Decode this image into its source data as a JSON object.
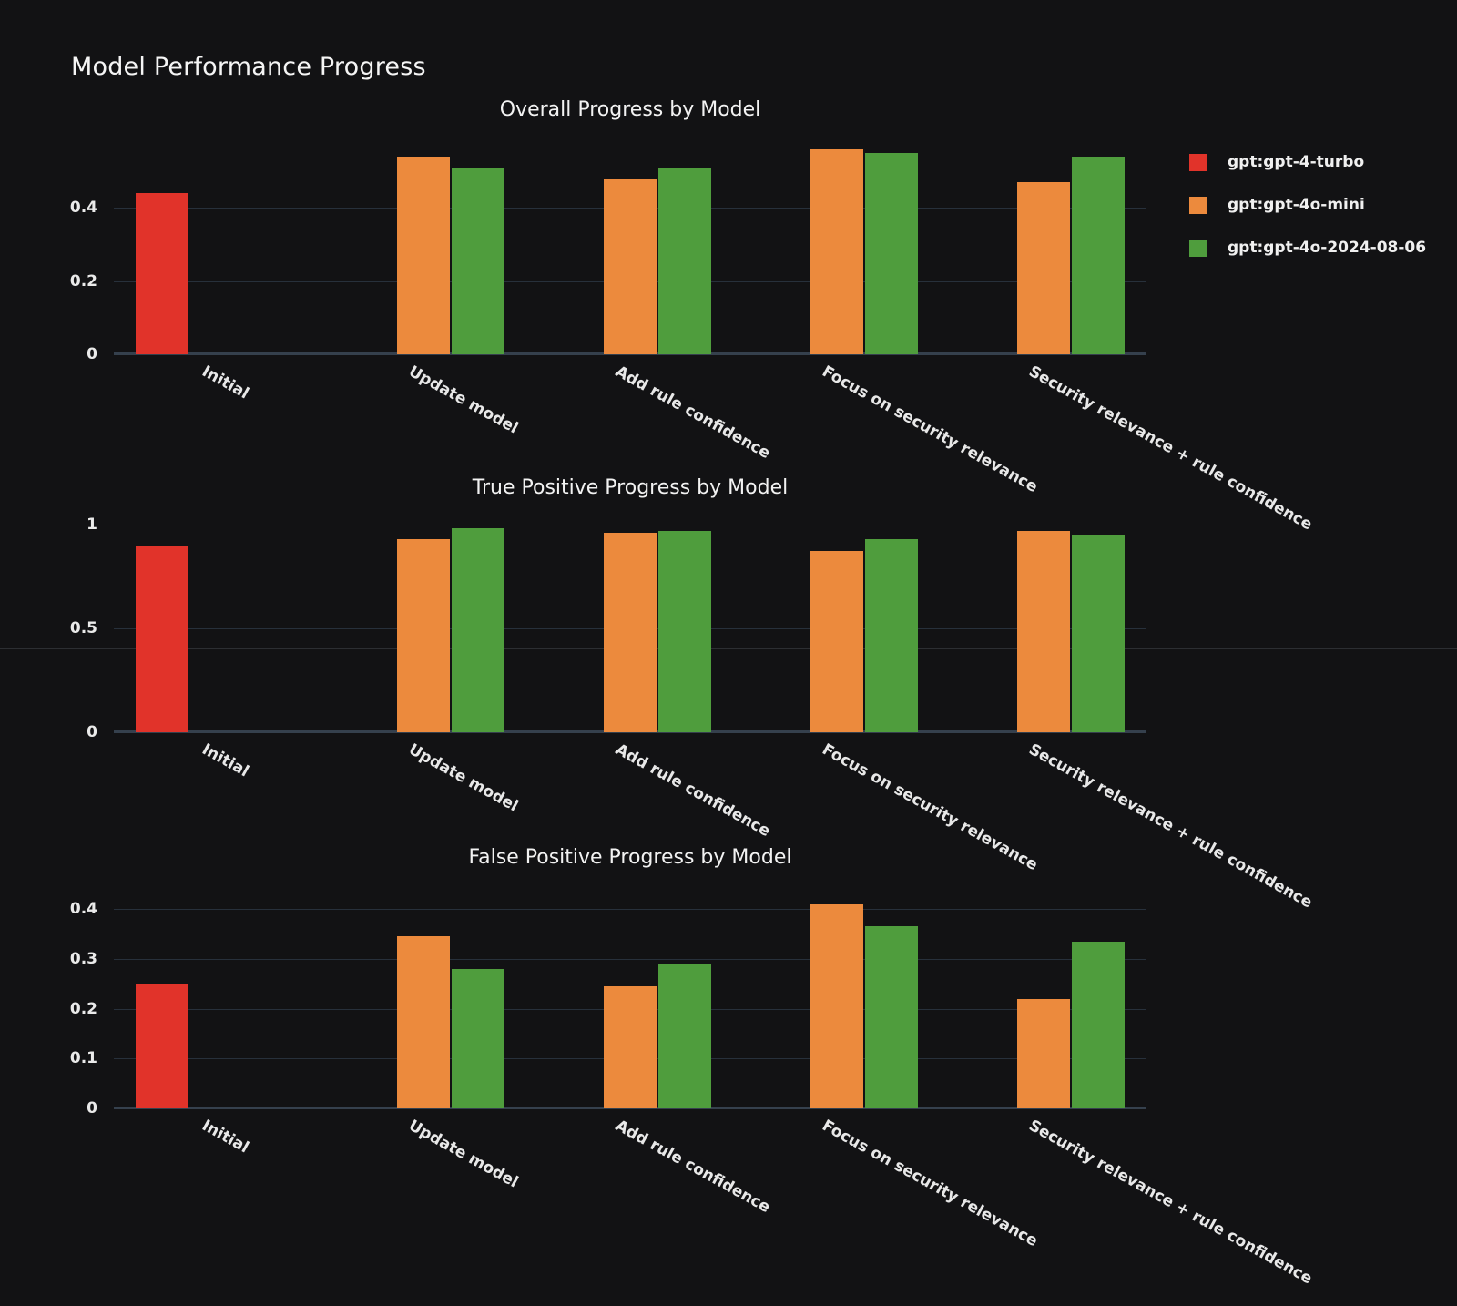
{
  "page": {
    "title": "Model Performance Progress"
  },
  "legend": {
    "items": [
      {
        "label": "gpt:gpt-4-turbo",
        "color": "#e1332a"
      },
      {
        "label": "gpt:gpt-4o-mini",
        "color": "#ec8a3d"
      },
      {
        "label": "gpt:gpt-4o-2024-08-06",
        "color": "#4f9d3d"
      }
    ],
    "position": "top-right outside plot"
  },
  "colors": {
    "background": "#121214",
    "gridline": "#27303b",
    "axis_line": "#35404d",
    "text": "#f0f0f0",
    "red": "#e1332a",
    "orange": "#ec8a3d",
    "green": "#4f9d3d"
  },
  "chart_data": [
    {
      "type": "bar",
      "title": "Overall Progress by Model",
      "xlabel": "",
      "ylabel": "",
      "grid": true,
      "legend_position": "upper right outside",
      "categories": [
        "Initial",
        "Update model",
        "Add rule confidence",
        "Focus on security relevance",
        "Security relevance + rule confidence"
      ],
      "yticks": [
        0,
        0.2,
        0.4
      ],
      "ylim": [
        0,
        0.57
      ],
      "series": [
        {
          "name": "gpt:gpt-4-turbo",
          "color": "#e1332a",
          "values": [
            0.44,
            null,
            null,
            null,
            null
          ]
        },
        {
          "name": "gpt:gpt-4o-mini",
          "color": "#ec8a3d",
          "values": [
            null,
            0.54,
            0.48,
            0.56,
            0.47
          ]
        },
        {
          "name": "gpt:gpt-4o-2024-08-06",
          "color": "#4f9d3d",
          "values": [
            null,
            0.51,
            0.51,
            0.55,
            0.54
          ]
        }
      ]
    },
    {
      "type": "bar",
      "title": "True Positive Progress by Model",
      "xlabel": "",
      "ylabel": "",
      "grid": true,
      "legend_position": "none",
      "categories": [
        "Initial",
        "Update model",
        "Add rule confidence",
        "Focus on security relevance",
        "Security relevance + rule confidence"
      ],
      "yticks": [
        0,
        0.5,
        1
      ],
      "ylim": [
        0,
        1.06
      ],
      "series": [
        {
          "name": "gpt:gpt-4-turbo",
          "color": "#e1332a",
          "values": [
            0.9,
            null,
            null,
            null,
            null
          ]
        },
        {
          "name": "gpt:gpt-4o-mini",
          "color": "#ec8a3d",
          "values": [
            null,
            0.93,
            0.96,
            0.87,
            0.97
          ]
        },
        {
          "name": "gpt:gpt-4o-2024-08-06",
          "color": "#4f9d3d",
          "values": [
            null,
            0.98,
            0.97,
            0.93,
            0.95
          ]
        }
      ]
    },
    {
      "type": "bar",
      "title": "False Positive Progress by Model",
      "xlabel": "",
      "ylabel": "",
      "grid": true,
      "legend_position": "none",
      "categories": [
        "Initial",
        "Update model",
        "Add rule confidence",
        "Focus on security relevance",
        "Security relevance + rule confidence"
      ],
      "yticks": [
        0,
        0.1,
        0.2,
        0.3,
        0.4
      ],
      "ylim": [
        0,
        0.426
      ],
      "series": [
        {
          "name": "gpt:gpt-4-turbo",
          "color": "#e1332a",
          "values": [
            0.25,
            null,
            null,
            null,
            null
          ]
        },
        {
          "name": "gpt:gpt-4o-mini",
          "color": "#ec8a3d",
          "values": [
            null,
            0.345,
            0.245,
            0.41,
            0.22
          ]
        },
        {
          "name": "gpt:gpt-4o-2024-08-06",
          "color": "#4f9d3d",
          "values": [
            null,
            0.28,
            0.29,
            0.365,
            0.335
          ]
        }
      ]
    }
  ]
}
